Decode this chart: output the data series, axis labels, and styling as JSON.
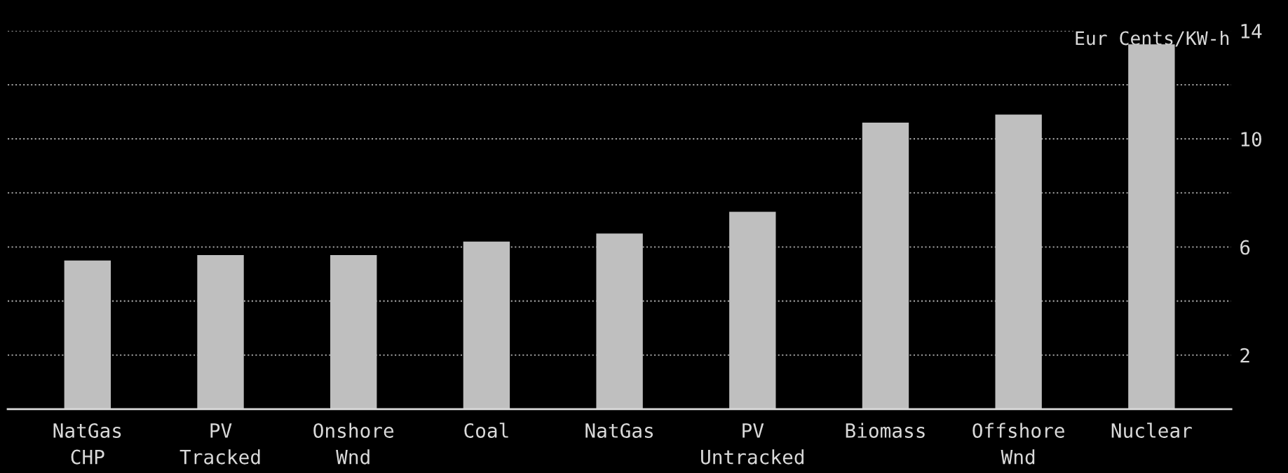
{
  "chart_data": {
    "type": "bar",
    "ylabel": "Eur Cents/KW-h",
    "categories": [
      "NatGas\nCHP",
      "PV\nTracked",
      "Onshore\nWnd",
      "Coal",
      "NatGas",
      "PV\nUntracked",
      "Biomass",
      "Offshore\nWnd",
      "Nuclear"
    ],
    "values": [
      5.5,
      5.7,
      5.7,
      6.2,
      6.5,
      7.3,
      10.6,
      10.9,
      13.5
    ],
    "color": "#bfbfbf",
    "ylim": [
      0,
      14
    ],
    "yticks": [
      2,
      {
        "value": 4,
        "label": null
      },
      6,
      {
        "value": 8,
        "label": null
      },
      10,
      {
        "value": 12,
        "label": null
      },
      14
    ],
    "grid": "y",
    "line_style": "dotted",
    "legend": false
  }
}
